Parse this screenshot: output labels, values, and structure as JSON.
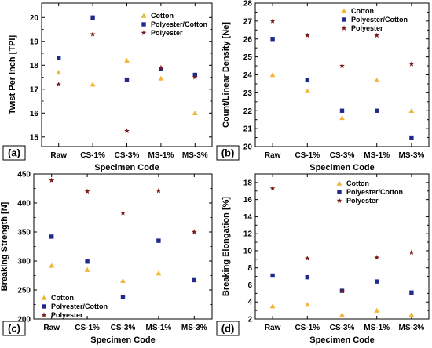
{
  "colors": {
    "Cotton": "#f2b637",
    "Polyester/Cotton": "#1f2a8c",
    "Polyester": "#7a1b1b"
  },
  "chart_data": [
    {
      "panel": "(a)",
      "type": "scatter",
      "categories": [
        "Raw",
        "CS-1%",
        "CS-3%",
        "MS-1%",
        "MS-3%"
      ],
      "xlabel": "Specimen Code",
      "ylabel": "Twist Per Inch [TPI]",
      "ylim": [
        14.6,
        20.6
      ],
      "yticks": [
        15,
        16,
        17,
        18,
        19,
        20
      ],
      "legend_position": "top-right",
      "series": [
        {
          "name": "Cotton",
          "marker": "triangle",
          "values": [
            17.7,
            17.2,
            18.2,
            17.45,
            16.0
          ]
        },
        {
          "name": "Polyester/Cotton",
          "marker": "square",
          "values": [
            18.3,
            20.0,
            17.4,
            17.85,
            17.6
          ]
        },
        {
          "name": "Polyester",
          "marker": "star",
          "values": [
            17.2,
            19.3,
            15.25,
            17.9,
            17.5
          ]
        }
      ]
    },
    {
      "panel": "(b)",
      "type": "scatter",
      "categories": [
        "Raw",
        "CS-1%",
        "CS-3%",
        "MS-1%",
        "MS-3%"
      ],
      "xlabel": "Specimen Code",
      "ylabel": "Count/Linear Density [Ne]",
      "ylim": [
        20,
        28
      ],
      "yticks": [
        20,
        21,
        22,
        23,
        24,
        25,
        26,
        27,
        28
      ],
      "legend_position": "top-right",
      "series": [
        {
          "name": "Cotton",
          "marker": "triangle",
          "values": [
            24.0,
            23.1,
            21.6,
            23.7,
            22.0
          ]
        },
        {
          "name": "Polyester/Cotton",
          "marker": "square",
          "values": [
            26.0,
            23.7,
            22.0,
            22.0,
            20.5
          ]
        },
        {
          "name": "Polyester",
          "marker": "star",
          "values": [
            27.0,
            26.2,
            24.5,
            26.2,
            24.6
          ]
        }
      ]
    },
    {
      "panel": "(c)",
      "type": "scatter",
      "categories": [
        "Raw",
        "CS-1%",
        "CS-3%",
        "MS-1%",
        "MS-3%"
      ],
      "xlabel": "Specimen Code",
      "ylabel": "Breaking Strength [N]",
      "ylim": [
        200,
        450
      ],
      "yticks": [
        200,
        250,
        300,
        350,
        400,
        450
      ],
      "legend_position": "bottom-left",
      "series": [
        {
          "name": "Cotton",
          "marker": "triangle",
          "values": [
            292,
            285,
            266,
            279,
            267
          ]
        },
        {
          "name": "Polyester/Cotton",
          "marker": "square",
          "values": [
            342,
            299,
            238,
            335,
            267
          ]
        },
        {
          "name": "Polyester",
          "marker": "star",
          "values": [
            439,
            420,
            383,
            421,
            350
          ]
        }
      ]
    },
    {
      "panel": "(d)",
      "type": "scatter",
      "categories": [
        "Raw",
        "CS-1%",
        "CS-3%",
        "MS-1%",
        "MS-3%"
      ],
      "xlabel": "Specimen Code",
      "ylabel": "Breaking Elongation [%]",
      "ylim": [
        2,
        19
      ],
      "yticks": [
        2,
        4,
        6,
        8,
        10,
        12,
        14,
        16,
        18
      ],
      "legend_position": "top-right",
      "series": [
        {
          "name": "Cotton",
          "marker": "triangle",
          "values": [
            3.5,
            3.7,
            2.5,
            3.0,
            2.5
          ]
        },
        {
          "name": "Polyester/Cotton",
          "marker": "square",
          "values": [
            7.1,
            6.9,
            5.3,
            6.4,
            5.1
          ]
        },
        {
          "name": "Polyester",
          "marker": "star",
          "values": [
            17.3,
            9.1,
            5.3,
            9.2,
            9.8
          ]
        }
      ]
    }
  ]
}
